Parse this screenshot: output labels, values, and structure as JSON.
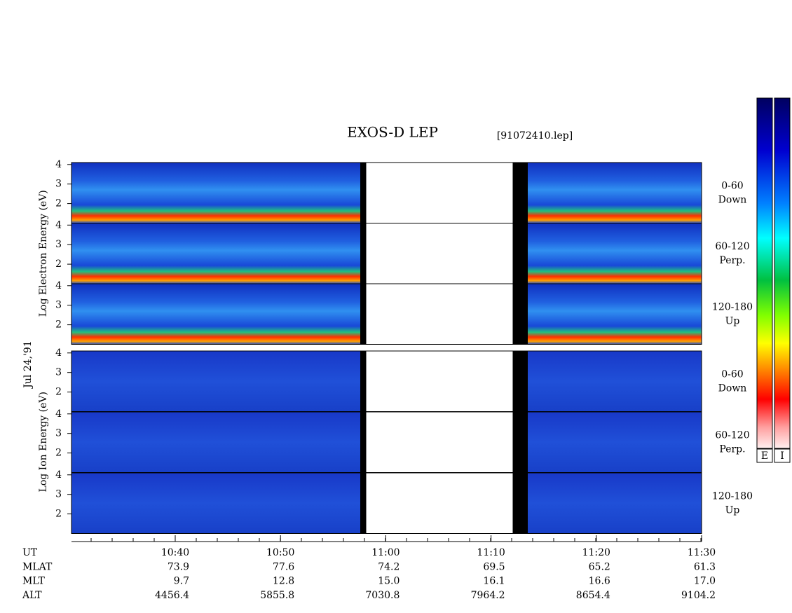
{
  "chart_data": {
    "type": "spectrogram",
    "title": "EXOS-D LEP",
    "subtitle": "[91072410.lep]",
    "date_label": "Jul 24,'91",
    "groups": [
      {
        "ylabel": "Log Electron Energy (eV)",
        "panels": [
          [
            "0-60",
            "Down"
          ],
          [
            "60-120",
            "Perp."
          ],
          [
            "120-180",
            "Up"
          ]
        ]
      },
      {
        "ylabel": "Log Ion Energy (eV)",
        "panels": [
          [
            "0-60",
            "Down"
          ],
          [
            "60-120",
            "Perp."
          ],
          [
            "120-180",
            "Up"
          ]
        ]
      }
    ],
    "ylim": [
      1,
      4.1
    ],
    "yticks": [
      2,
      3,
      4
    ],
    "xticks": [
      "10:40",
      "10:50",
      "11:00",
      "11:10",
      "11:20",
      "11:30"
    ],
    "rows": [
      {
        "name": "UT"
      },
      {
        "name": "MLAT",
        "values": [
          "73.9",
          "77.6",
          "74.2",
          "69.5",
          "65.2",
          "61.3"
        ]
      },
      {
        "name": "MLT",
        "values": [
          "9.7",
          "12.8",
          "15.0",
          "16.1",
          "16.6",
          "17.0"
        ]
      },
      {
        "name": "ALT",
        "values": [
          "4456.4",
          "5855.8",
          "7030.8",
          "7964.2",
          "8654.4",
          "9104.2"
        ]
      }
    ],
    "colorbars": [
      "E",
      "I"
    ]
  }
}
